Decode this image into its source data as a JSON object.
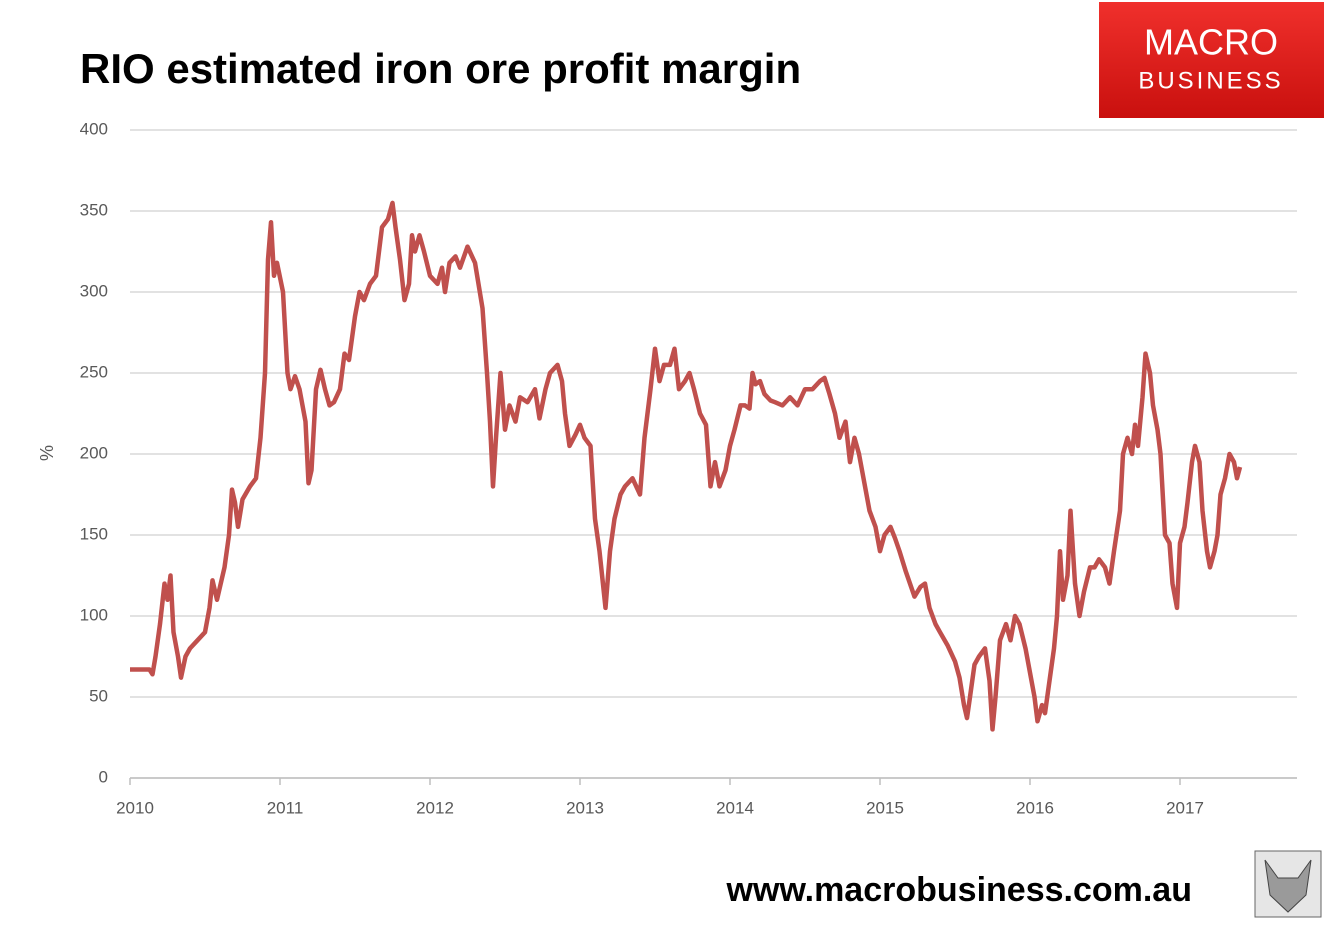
{
  "chart_data": {
    "type": "line",
    "title": "RIO estimated iron ore profit margin",
    "y_label": "%",
    "footer": "www.macrobusiness.com.au",
    "logo": {
      "line1": "MACRO",
      "line2": "BUSINESS"
    },
    "color": "#c0504d",
    "grid": true,
    "xlim": [
      2010,
      2017.78
    ],
    "xticks": [
      2010,
      2011,
      2012,
      2013,
      2014,
      2015,
      2016,
      2017
    ],
    "ylim": [
      0,
      400
    ],
    "yticks": [
      0,
      50,
      100,
      150,
      200,
      250,
      300,
      350,
      400
    ],
    "x": [
      2010.0,
      2010.13,
      2010.15,
      2010.17,
      2010.2,
      2010.23,
      2010.25,
      2010.27,
      2010.29,
      2010.32,
      2010.34,
      2010.37,
      2010.4,
      2010.45,
      2010.5,
      2010.53,
      2010.55,
      2010.58,
      2010.6,
      2010.63,
      2010.66,
      2010.68,
      2010.7,
      2010.72,
      2010.75,
      2010.8,
      2010.84,
      2010.87,
      2010.9,
      2010.92,
      2010.94,
      2010.96,
      2010.98,
      2011.02,
      2011.05,
      2011.07,
      2011.1,
      2011.13,
      2011.17,
      2011.19,
      2011.21,
      2011.24,
      2011.27,
      2011.3,
      2011.33,
      2011.36,
      2011.4,
      2011.43,
      2011.46,
      2011.5,
      2011.53,
      2011.56,
      2011.6,
      2011.64,
      2011.68,
      2011.72,
      2011.75,
      2011.77,
      2011.8,
      2011.83,
      2011.86,
      2011.88,
      2011.9,
      2011.93,
      2011.96,
      2012.0,
      2012.05,
      2012.08,
      2012.1,
      2012.13,
      2012.17,
      2012.2,
      2012.25,
      2012.3,
      2012.35,
      2012.38,
      2012.4,
      2012.42,
      2012.44,
      2012.47,
      2012.5,
      2012.53,
      2012.57,
      2012.6,
      2012.65,
      2012.7,
      2012.73,
      2012.77,
      2012.8,
      2012.85,
      2012.88,
      2012.9,
      2012.93,
      2012.97,
      2013.0,
      2013.03,
      2013.07,
      2013.1,
      2013.13,
      2013.17,
      2013.2,
      2013.23,
      2013.27,
      2013.3,
      2013.35,
      2013.4,
      2013.43,
      2013.47,
      2013.5,
      2013.53,
      2013.56,
      2013.6,
      2013.63,
      2013.66,
      2013.7,
      2013.73,
      2013.76,
      2013.8,
      2013.84,
      2013.87,
      2013.9,
      2013.93,
      2013.97,
      2014.0,
      2014.03,
      2014.07,
      2014.1,
      2014.13,
      2014.15,
      2014.17,
      2014.2,
      2014.23,
      2014.27,
      2014.3,
      2014.35,
      2014.4,
      2014.45,
      2014.5,
      2014.55,
      2014.6,
      2014.63,
      2014.66,
      2014.7,
      2014.73,
      2014.77,
      2014.8,
      2014.83,
      2014.86,
      2014.9,
      2014.93,
      2014.97,
      2015.0,
      2015.03,
      2015.07,
      2015.1,
      2015.13,
      2015.17,
      2015.2,
      2015.23,
      2015.27,
      2015.3,
      2015.33,
      2015.37,
      2015.4,
      2015.45,
      2015.5,
      2015.53,
      2015.56,
      2015.58,
      2015.6,
      2015.63,
      2015.66,
      2015.7,
      2015.73,
      2015.75,
      2015.77,
      2015.8,
      2015.84,
      2015.87,
      2015.9,
      2015.93,
      2015.97,
      2016.0,
      2016.03,
      2016.05,
      2016.08,
      2016.1,
      2016.13,
      2016.16,
      2016.18,
      2016.2,
      2016.22,
      2016.25,
      2016.27,
      2016.3,
      2016.33,
      2016.36,
      2016.4,
      2016.43,
      2016.46,
      2016.5,
      2016.53,
      2016.56,
      2016.6,
      2016.62,
      2016.65,
      2016.68,
      2016.7,
      2016.72,
      2016.75,
      2016.77,
      2016.8,
      2016.82,
      2016.85,
      2016.87,
      2016.9,
      2016.93,
      2016.95,
      2016.98,
      2017.0,
      2017.03,
      2017.05,
      2017.08,
      2017.1,
      2017.13,
      2017.15,
      2017.18,
      2017.2,
      2017.23,
      2017.25,
      2017.27,
      2017.3,
      2017.33,
      2017.36,
      2017.38,
      2017.4
    ],
    "values": [
      67,
      67,
      64,
      75,
      95,
      120,
      110,
      125,
      90,
      75,
      62,
      75,
      80,
      85,
      90,
      105,
      122,
      110,
      118,
      130,
      150,
      178,
      170,
      155,
      172,
      180,
      185,
      210,
      250,
      320,
      343,
      310,
      318,
      300,
      250,
      240,
      248,
      240,
      220,
      182,
      190,
      240,
      252,
      240,
      230,
      232,
      240,
      262,
      258,
      285,
      300,
      295,
      305,
      310,
      340,
      345,
      355,
      340,
      320,
      295,
      305,
      335,
      325,
      335,
      325,
      310,
      305,
      315,
      300,
      318,
      322,
      315,
      328,
      318,
      290,
      250,
      220,
      180,
      210,
      250,
      215,
      230,
      220,
      235,
      232,
      240,
      222,
      240,
      250,
      255,
      245,
      225,
      205,
      212,
      218,
      210,
      205,
      160,
      140,
      105,
      140,
      160,
      175,
      180,
      185,
      175,
      210,
      240,
      265,
      245,
      255,
      255,
      265,
      240,
      245,
      250,
      240,
      225,
      218,
      180,
      195,
      180,
      190,
      205,
      215,
      230,
      230,
      228,
      250,
      243,
      245,
      237,
      233,
      232,
      230,
      235,
      230,
      240,
      240,
      245,
      247,
      238,
      225,
      210,
      220,
      195,
      210,
      200,
      180,
      165,
      155,
      140,
      150,
      155,
      148,
      140,
      128,
      120,
      112,
      118,
      120,
      105,
      95,
      90,
      82,
      72,
      62,
      45,
      37,
      50,
      70,
      75,
      80,
      60,
      30,
      50,
      85,
      95,
      85,
      100,
      95,
      80,
      65,
      50,
      35,
      45,
      40,
      60,
      80,
      100,
      140,
      110,
      125,
      165,
      120,
      100,
      115,
      130,
      130,
      135,
      130,
      120,
      140,
      165,
      200,
      210,
      200,
      218,
      205,
      235,
      262,
      250,
      230,
      215,
      200,
      150,
      145,
      120,
      105,
      145,
      155,
      170,
      195,
      205,
      195,
      165,
      140,
      130,
      140,
      150,
      175,
      185,
      200,
      195,
      185,
      192
    ]
  }
}
